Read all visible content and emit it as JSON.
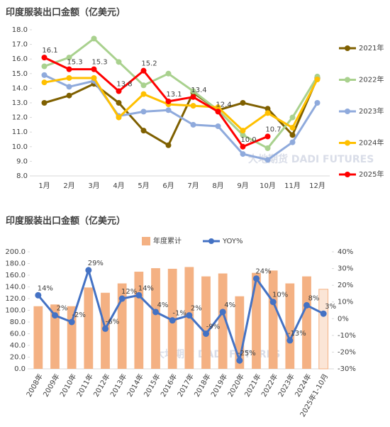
{
  "chart_data": [
    {
      "type": "line",
      "title": "印度服装出口金额（亿美元）",
      "categories": [
        "1月",
        "2月",
        "3月",
        "4月",
        "5月",
        "6月",
        "7月",
        "8月",
        "9月",
        "10月",
        "11月",
        "12月"
      ],
      "ylim": [
        8,
        18
      ],
      "yticks": [
        {
          "value": 8,
          "label": "8.0"
        },
        {
          "value": 9,
          "label": "9.0"
        },
        {
          "value": 10,
          "label": "10.0"
        },
        {
          "value": 11,
          "label": "11.0"
        },
        {
          "value": 12,
          "label": "12.0"
        },
        {
          "value": 13,
          "label": "13.0"
        },
        {
          "value": 14,
          "label": "14.0"
        },
        {
          "value": 15,
          "label": "15.0"
        },
        {
          "value": 16,
          "label": "16.0"
        },
        {
          "value": 17,
          "label": "17.0"
        },
        {
          "value": 18,
          "label": "18.0"
        }
      ],
      "legend": "right",
      "series": [
        {
          "name": "2021年",
          "color": "#7f6000",
          "values": [
            13.0,
            13.5,
            14.3,
            13.0,
            11.1,
            10.1,
            13.7,
            12.5,
            13.0,
            12.6,
            10.8,
            14.7
          ]
        },
        {
          "name": "2022年",
          "color": "#a9d18e",
          "values": [
            15.5,
            16.1,
            17.4,
            15.8,
            14.2,
            15.0,
            13.8,
            12.5,
            10.8,
            9.9,
            12.0,
            14.8
          ]
        },
        {
          "name": "2023年",
          "color": "#8faadc",
          "values": [
            14.9,
            14.1,
            14.5,
            12.1,
            12.4,
            12.5,
            11.5,
            11.4,
            9.5,
            9.1,
            10.3,
            13.0
          ]
        },
        {
          "name": "2024年",
          "color": "#ffc000",
          "values": [
            14.4,
            14.7,
            14.7,
            12.0,
            13.6,
            12.9,
            12.8,
            12.7,
            11.1,
            12.3,
            11.3,
            14.6
          ]
        },
        {
          "name": "2025年",
          "color": "#ff0000",
          "values": [
            16.1,
            15.3,
            15.3,
            13.8,
            15.2,
            13.1,
            13.4,
            12.4,
            10.0,
            10.7,
            null,
            null
          ],
          "value_labels": [
            "16.1",
            "15.3",
            "15.3",
            "13.8",
            "15.2",
            "13.1",
            "13.4",
            "12.4",
            "10.0",
            "10.7",
            null,
            null
          ]
        }
      ],
      "watermark": "大地期货 DADI FUTURES"
    },
    {
      "type": "bar",
      "title": "印度服装出口金额（亿美元）",
      "categories": [
        "2008年",
        "2009年",
        "2010年",
        "2011年",
        "2012年",
        "2013年",
        "2014年",
        "2015年",
        "2016年",
        "2017年",
        "2018年",
        "2019年",
        "2020年",
        "2021年",
        "2022年",
        "2023年",
        "2024年",
        "2025年1-10月"
      ],
      "ylim": [
        0,
        200
      ],
      "yticks": [
        {
          "value": 0,
          "label": "0.0"
        },
        {
          "value": 20,
          "label": "20.0"
        },
        {
          "value": 40,
          "label": "40.0"
        },
        {
          "value": 60,
          "label": "60.0"
        },
        {
          "value": 80,
          "label": "80.0"
        },
        {
          "value": 100,
          "label": "100.0"
        },
        {
          "value": 120,
          "label": "120.0"
        },
        {
          "value": 140,
          "label": "140.0"
        },
        {
          "value": 160,
          "label": "160.0"
        },
        {
          "value": 180,
          "label": "180.0"
        },
        {
          "value": 200,
          "label": "200.0"
        }
      ],
      "y2lim": [
        -30,
        40
      ],
      "y2ticks": [
        {
          "value": -30,
          "label": "-30%"
        },
        {
          "value": -20,
          "label": "-20%"
        },
        {
          "value": -10,
          "label": "-10%"
        },
        {
          "value": 0,
          "label": "0%"
        },
        {
          "value": 10,
          "label": "10%"
        },
        {
          "value": 20,
          "label": "20%"
        },
        {
          "value": 30,
          "label": "30%"
        },
        {
          "value": 40,
          "label": "40%"
        }
      ],
      "legend": "top",
      "series": [
        {
          "name": "年度累计",
          "type": "bar",
          "color": "#f4b183",
          "values": [
            107,
            110,
            107,
            139,
            130,
            146,
            166,
            172,
            171,
            174,
            158,
            163,
            124,
            164,
            168,
            146,
            158,
            136
          ]
        },
        {
          "name": "YOY%",
          "type": "line",
          "axis": "y2",
          "color": "#4472c4",
          "values": [
            14,
            2,
            -2,
            29,
            -6,
            12,
            14,
            4,
            -1,
            2,
            -9,
            4,
            -25,
            24,
            10,
            -13,
            8,
            3
          ],
          "value_labels": [
            "14%",
            "2%",
            "-2%",
            "29%",
            "-6%",
            "12%",
            "14%",
            "4%",
            "-1%",
            "2%",
            "-9%",
            "4%",
            "-25%",
            "24%",
            "10%",
            "-13%",
            "8%",
            "3%"
          ]
        }
      ],
      "watermark": "大地期货 DADI FUTURES"
    }
  ]
}
